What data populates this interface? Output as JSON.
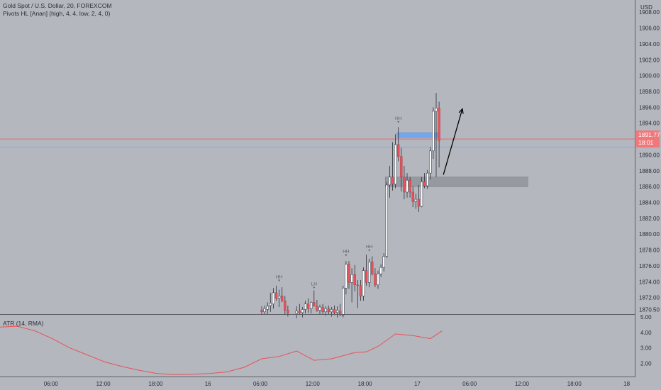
{
  "legend": {
    "symbol": "Gold Spot / U.S. Dollar, 20, FOREXCOM",
    "indicator": "Pivots HL [Anan] (high, 4, 4, low, 2, 4, 0)"
  },
  "atr_legend": "ATR (14, RMA)",
  "currency": "USD",
  "current_price": "1891.77",
  "countdown": "18:01",
  "colors": {
    "background": "#b4b7bd",
    "bull": "#ffffff",
    "bear": "#e8525a",
    "wick": "#2a2e39",
    "atr_line": "#e8525a"
  },
  "chart_data": {
    "type": "candlestick",
    "price_axis": {
      "ticks": [
        "1908.00",
        "1906.00",
        "1904.00",
        "1902.00",
        "1900.00",
        "1898.00",
        "1896.00",
        "1894.00",
        "1892.00",
        "1890.00",
        "1888.00",
        "1886.00",
        "1884.00",
        "1882.00",
        "1880.00",
        "1878.00",
        "1876.00",
        "1874.00",
        "1872.00",
        "1870.50"
      ],
      "range": [
        1870,
        1909
      ]
    },
    "atr_axis": {
      "ticks": [
        "5.00",
        "4.00",
        "3.00",
        "2.00"
      ],
      "range": [
        1.2,
        5.0
      ]
    },
    "time_axis": {
      "ticks": [
        "06:00",
        "12:00",
        "18:00",
        "16",
        "06:00",
        "12:00",
        "18:00",
        "17",
        "06:00",
        "12:00",
        "18:00",
        "18"
      ],
      "positions": [
        18,
        36,
        54,
        72,
        90,
        108,
        126,
        144,
        162,
        180,
        198,
        216
      ]
    },
    "candles": [
      {
        "i": 90,
        "o": 1870.4,
        "h": 1870.9,
        "l": 1869.8,
        "c": 1870.2
      },
      {
        "i": 91,
        "o": 1870.2,
        "h": 1871.0,
        "l": 1869.8,
        "c": 1870.6
      },
      {
        "i": 92,
        "o": 1870.5,
        "h": 1871.4,
        "l": 1869.9,
        "c": 1870.9
      },
      {
        "i": 93,
        "o": 1871.0,
        "h": 1872.6,
        "l": 1870.2,
        "c": 1871.3
      },
      {
        "i": 94,
        "o": 1871.2,
        "h": 1873.2,
        "l": 1870.6,
        "c": 1872.6
      },
      {
        "i": 95,
        "o": 1872.6,
        "h": 1873.5,
        "l": 1871.6,
        "c": 1871.9
      },
      {
        "i": 96,
        "o": 1871.9,
        "h": 1873.0,
        "l": 1870.8,
        "c": 1872.2
      },
      {
        "i": 97,
        "o": 1872.2,
        "h": 1873.3,
        "l": 1871.4,
        "c": 1871.6
      },
      {
        "i": 98,
        "o": 1871.6,
        "h": 1872.2,
        "l": 1869.8,
        "c": 1870.4
      },
      {
        "i": 99,
        "o": 1870.4,
        "h": 1871.0,
        "l": 1869.6,
        "c": 1870.0
      },
      {
        "i": 102,
        "o": 1870.0,
        "h": 1870.9,
        "l": 1869.4,
        "c": 1870.3
      },
      {
        "i": 103,
        "o": 1870.3,
        "h": 1871.2,
        "l": 1869.8,
        "c": 1870.1
      },
      {
        "i": 104,
        "o": 1870.1,
        "h": 1870.8,
        "l": 1869.5,
        "c": 1870.5
      },
      {
        "i": 105,
        "o": 1870.5,
        "h": 1871.6,
        "l": 1870.0,
        "c": 1871.2
      },
      {
        "i": 106,
        "o": 1871.2,
        "h": 1871.9,
        "l": 1870.1,
        "c": 1870.6
      },
      {
        "i": 107,
        "o": 1870.6,
        "h": 1871.5,
        "l": 1870.0,
        "c": 1871.4
      },
      {
        "i": 108,
        "o": 1871.4,
        "h": 1872.9,
        "l": 1870.9,
        "c": 1870.9
      },
      {
        "i": 109,
        "o": 1870.9,
        "h": 1871.7,
        "l": 1870.2,
        "c": 1870.4
      },
      {
        "i": 110,
        "o": 1870.4,
        "h": 1871.1,
        "l": 1869.9,
        "c": 1870.8
      },
      {
        "i": 111,
        "o": 1870.8,
        "h": 1871.2,
        "l": 1869.9,
        "c": 1870.2
      },
      {
        "i": 112,
        "o": 1870.2,
        "h": 1870.9,
        "l": 1869.7,
        "c": 1870.6
      },
      {
        "i": 113,
        "o": 1870.6,
        "h": 1871.0,
        "l": 1869.9,
        "c": 1870.2
      },
      {
        "i": 114,
        "o": 1870.2,
        "h": 1870.8,
        "l": 1869.6,
        "c": 1870.5
      },
      {
        "i": 115,
        "o": 1870.5,
        "h": 1871.0,
        "l": 1869.8,
        "c": 1870.1
      },
      {
        "i": 116,
        "o": 1870.1,
        "h": 1870.9,
        "l": 1869.5,
        "c": 1870.4
      },
      {
        "i": 117,
        "o": 1870.3,
        "h": 1871.2,
        "l": 1869.7,
        "c": 1869.8
      },
      {
        "i": 118,
        "o": 1869.8,
        "h": 1873.5,
        "l": 1869.5,
        "c": 1873.2
      },
      {
        "i": 119,
        "o": 1873.2,
        "h": 1876.6,
        "l": 1872.4,
        "c": 1876.2
      },
      {
        "i": 120,
        "o": 1876.2,
        "h": 1876.6,
        "l": 1873.1,
        "c": 1873.9
      },
      {
        "i": 121,
        "o": 1873.9,
        "h": 1875.7,
        "l": 1871.4,
        "c": 1874.9
      },
      {
        "i": 122,
        "o": 1874.9,
        "h": 1876.1,
        "l": 1872.8,
        "c": 1873.6
      },
      {
        "i": 123,
        "o": 1873.6,
        "h": 1874.2,
        "l": 1870.7,
        "c": 1873.5
      },
      {
        "i": 124,
        "o": 1873.5,
        "h": 1874.2,
        "l": 1871.6,
        "c": 1872.2
      },
      {
        "i": 125,
        "o": 1872.2,
        "h": 1875.8,
        "l": 1871.6,
        "c": 1875.4
      },
      {
        "i": 126,
        "o": 1875.4,
        "h": 1877.4,
        "l": 1873.5,
        "c": 1873.9
      },
      {
        "i": 127,
        "o": 1873.9,
        "h": 1876.9,
        "l": 1873.3,
        "c": 1876.5
      },
      {
        "i": 128,
        "o": 1876.5,
        "h": 1877.2,
        "l": 1874.8,
        "c": 1875.0
      },
      {
        "i": 129,
        "o": 1875.0,
        "h": 1875.7,
        "l": 1873.3,
        "c": 1873.6
      },
      {
        "i": 130,
        "o": 1873.6,
        "h": 1875.4,
        "l": 1873.1,
        "c": 1875.0
      },
      {
        "i": 131,
        "o": 1875.0,
        "h": 1876.2,
        "l": 1874.6,
        "c": 1875.8
      },
      {
        "i": 132,
        "o": 1875.8,
        "h": 1877.6,
        "l": 1875.3,
        "c": 1877.2
      },
      {
        "i": 133,
        "o": 1877.2,
        "h": 1886.6,
        "l": 1877.0,
        "c": 1886.2
      },
      {
        "i": 134,
        "o": 1886.2,
        "h": 1888.6,
        "l": 1884.6,
        "c": 1887.2
      },
      {
        "i": 135,
        "o": 1887.2,
        "h": 1891.6,
        "l": 1885.5,
        "c": 1886.3
      },
      {
        "i": 136,
        "o": 1886.3,
        "h": 1892.6,
        "l": 1885.8,
        "c": 1891.3
      },
      {
        "i": 137,
        "o": 1891.3,
        "h": 1893.5,
        "l": 1889.2,
        "c": 1889.8
      },
      {
        "i": 138,
        "o": 1889.8,
        "h": 1890.9,
        "l": 1885.4,
        "c": 1887.2
      },
      {
        "i": 139,
        "o": 1887.2,
        "h": 1888.6,
        "l": 1884.4,
        "c": 1885.3
      },
      {
        "i": 140,
        "o": 1885.3,
        "h": 1887.7,
        "l": 1884.6,
        "c": 1886.8
      },
      {
        "i": 141,
        "o": 1886.8,
        "h": 1887.2,
        "l": 1884.6,
        "c": 1885.3
      },
      {
        "i": 142,
        "o": 1885.3,
        "h": 1886.0,
        "l": 1883.4,
        "c": 1884.1
      },
      {
        "i": 143,
        "o": 1884.1,
        "h": 1885.1,
        "l": 1883.2,
        "c": 1884.4
      },
      {
        "i": 144,
        "o": 1884.4,
        "h": 1886.2,
        "l": 1882.8,
        "c": 1883.5
      },
      {
        "i": 145,
        "o": 1883.5,
        "h": 1887.2,
        "l": 1883.4,
        "c": 1886.6
      },
      {
        "i": 146,
        "o": 1886.6,
        "h": 1887.7,
        "l": 1885.8,
        "c": 1886.1
      },
      {
        "i": 147,
        "o": 1886.1,
        "h": 1888.1,
        "l": 1885.7,
        "c": 1887.7
      },
      {
        "i": 148,
        "o": 1887.7,
        "h": 1891.0,
        "l": 1886.9,
        "c": 1890.5
      },
      {
        "i": 149,
        "o": 1890.5,
        "h": 1896.0,
        "l": 1889.5,
        "c": 1895.5
      },
      {
        "i": 150,
        "o": 1895.5,
        "h": 1897.8,
        "l": 1887.2,
        "c": 1895.9
      },
      {
        "i": 151,
        "o": 1895.9,
        "h": 1896.7,
        "l": 1888.4,
        "c": 1891.8
      }
    ],
    "pivot_labels": [
      {
        "text": "HH",
        "i": 96,
        "price": 1873.8
      },
      {
        "text": "LH",
        "i": 108,
        "price": 1872.9
      },
      {
        "text": "HH",
        "i": 119,
        "price": 1877.0
      },
      {
        "text": "HH",
        "i": 127,
        "price": 1877.6
      },
      {
        "text": "HH",
        "i": 137,
        "price": 1893.8
      }
    ],
    "horizontal_lines": [
      {
        "price": 1892.0,
        "color": "#e8525a",
        "label": "current price"
      },
      {
        "price": 1891.0,
        "color": "#6aa6f0",
        "label": "level"
      }
    ],
    "zones": [
      {
        "type": "rectangle",
        "price_top": 1887.2,
        "price_bottom": 1886.0,
        "start_i": 133,
        "end_i": 182,
        "color": "#8b8f97"
      },
      {
        "type": "rectangle",
        "price_top": 1892.8,
        "price_bottom": 1892.2,
        "start_i": 137,
        "end_i": 151,
        "color": "#6aa6f0"
      }
    ],
    "arrow": {
      "from_i": 152,
      "from_price": 1887.5,
      "to_i": 159,
      "to_price": 1895.8
    },
    "atr": {
      "name": "ATR (14, RMA)",
      "x": [
        0,
        6,
        12,
        18,
        24,
        30,
        36,
        42,
        48,
        54,
        60,
        66,
        72,
        78,
        84,
        90,
        96,
        102,
        108,
        114,
        118,
        122,
        126,
        130,
        136,
        142,
        148,
        152
      ],
      "values": [
        4.35,
        4.4,
        4.1,
        3.6,
        3.0,
        2.55,
        2.1,
        1.8,
        1.55,
        1.35,
        1.28,
        1.3,
        1.35,
        1.45,
        1.75,
        2.3,
        2.45,
        2.8,
        2.2,
        2.3,
        2.5,
        2.7,
        2.75,
        3.1,
        3.9,
        3.8,
        3.6,
        4.1
      ]
    }
  }
}
